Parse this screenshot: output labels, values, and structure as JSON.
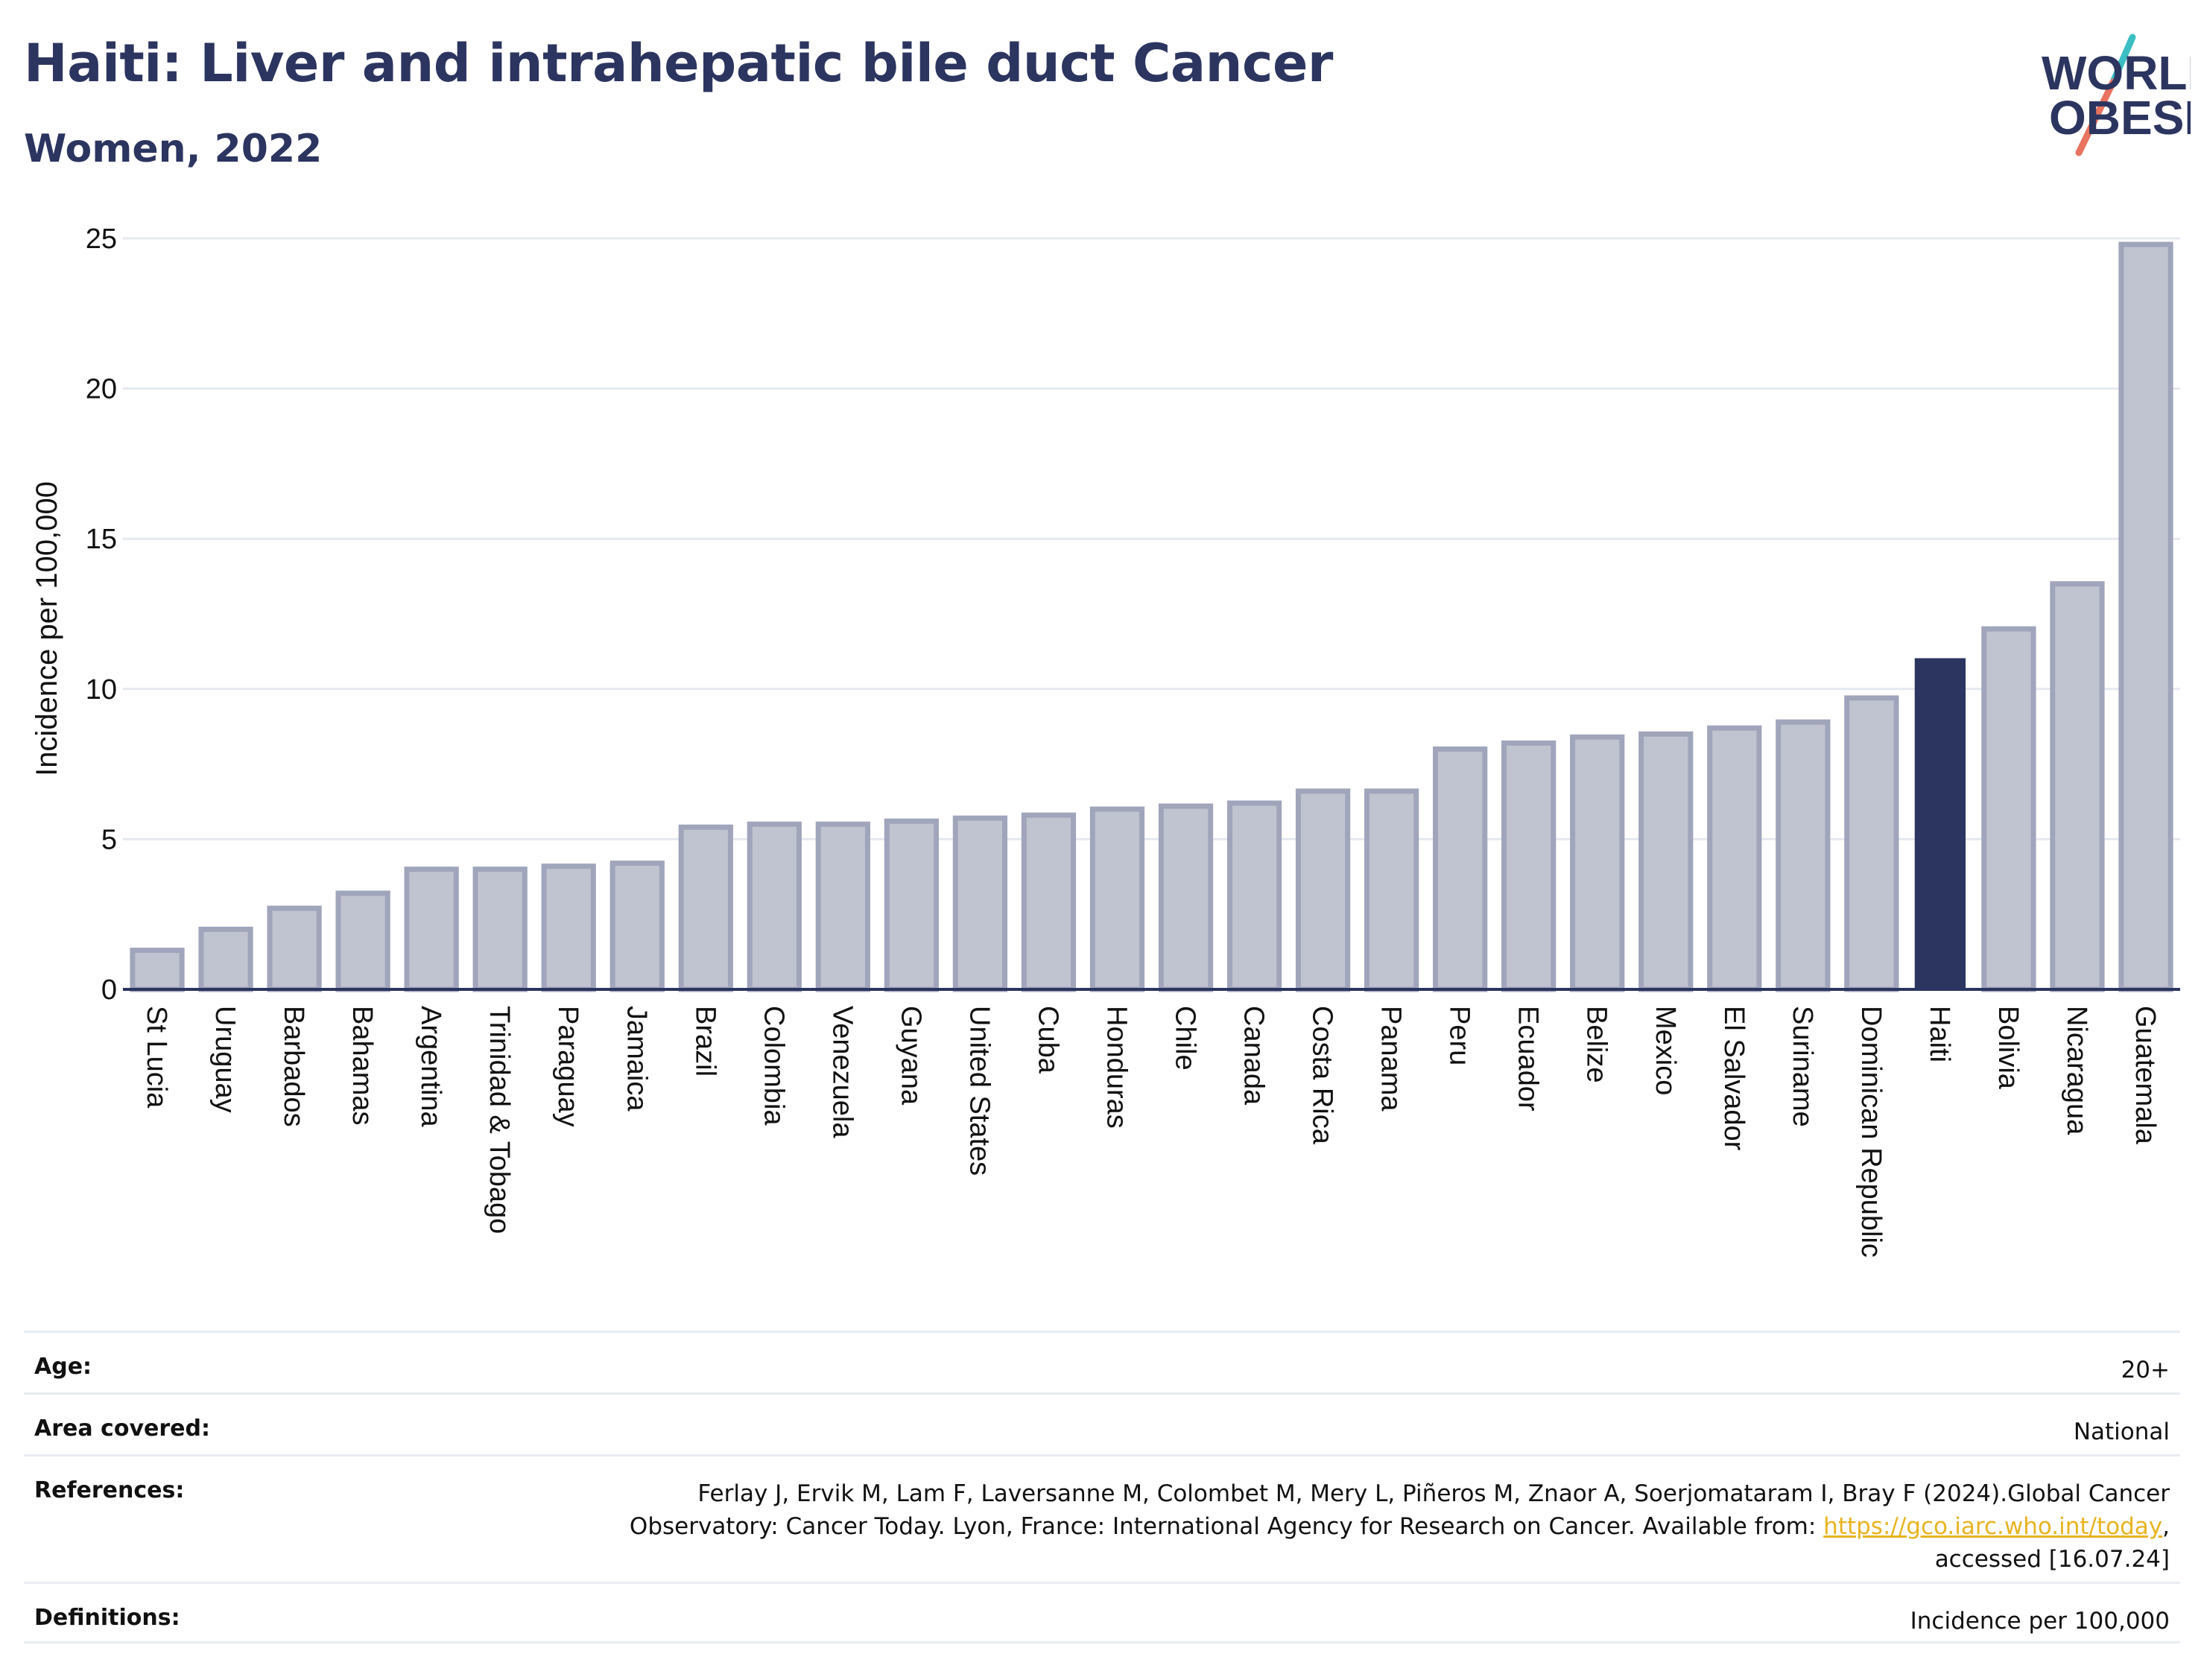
{
  "header": {
    "title": "Haiti: Liver and intrahepatic bile duct Cancer",
    "subtitle": "Women, 2022"
  },
  "logo": {
    "line1": "WORLD",
    "line2": "OBESITY",
    "colors": {
      "text": "#2c3560",
      "slash_teal": "#3bbfc4",
      "slash_coral": "#e8735f"
    }
  },
  "colors": {
    "bar_default_fill": "#c0c3d0",
    "bar_default_stroke": "#a0a5bb",
    "bar_highlight": "#2c3560",
    "gridline": "#e5e9f0",
    "axis": "#2c3560",
    "link": "#e8b320"
  },
  "chart_data": {
    "type": "bar",
    "ylabel": "Incidence per 100,000",
    "xlabel": "",
    "ylim": [
      0,
      25
    ],
    "yticks": [
      0,
      5,
      10,
      15,
      20,
      25
    ],
    "grid": true,
    "highlight": "Haiti",
    "categories": [
      "St Lucia",
      "Uruguay",
      "Barbados",
      "Bahamas",
      "Argentina",
      "Trinidad & Tobago",
      "Paraguay",
      "Jamaica",
      "Brazil",
      "Colombia",
      "Venezuela",
      "Guyana",
      "United States",
      "Cuba",
      "Honduras",
      "Chile",
      "Canada",
      "Costa Rica",
      "Panama",
      "Peru",
      "Ecuador",
      "Belize",
      "Mexico",
      "El Salvador",
      "Suriname",
      "Dominican Republic",
      "Haiti",
      "Bolivia",
      "Nicaragua",
      "Guatemala"
    ],
    "values": [
      1.3,
      2.0,
      2.7,
      3.2,
      4.0,
      4.0,
      4.1,
      4.2,
      5.4,
      5.5,
      5.5,
      5.6,
      5.7,
      5.8,
      6.0,
      6.1,
      6.2,
      6.6,
      6.6,
      8.0,
      8.2,
      8.4,
      8.5,
      8.7,
      8.9,
      9.7,
      11.0,
      12.0,
      13.5,
      24.8
    ]
  },
  "meta": {
    "age_label": "Age:",
    "age_value": "20+",
    "area_label": "Area covered:",
    "area_value": "National",
    "references_label": "References:",
    "references_line1": "Ferlay J, Ervik M, Lam F, Laversanne M, Colombet M, Mery L, Piñeros M, Znaor A, Soerjomataram I, Bray F (2024).Global Cancer",
    "references_line2_prefix": "Observatory: Cancer Today. Lyon, France: International Agency for Research on Cancer. Available from: ",
    "references_link": "https://gco.iarc.who.int/today",
    "references_line2_suffix": ",",
    "references_line3": "accessed [16.07.24]",
    "definitions_label": "Definitions:",
    "definitions_value": "Incidence per 100,000"
  }
}
